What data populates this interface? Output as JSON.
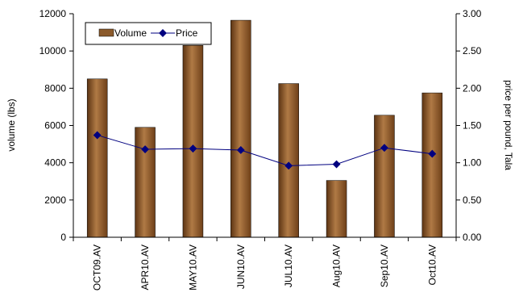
{
  "chart_data": {
    "type": "bar",
    "title": "",
    "categories": [
      "OCT09.AV",
      "APR10.AV",
      "MAY10.AV",
      "JUN10.AV",
      "JUL10.AV",
      "Aug10.AV",
      "Sep10.AV",
      "Oct10.AV"
    ],
    "series": [
      {
        "name": "Volume",
        "type": "bar",
        "axis": "left",
        "color": "#8b5a2b",
        "values": [
          8500,
          5900,
          10300,
          11650,
          8250,
          3050,
          6550,
          7750
        ]
      },
      {
        "name": "Price",
        "type": "line",
        "axis": "right",
        "color": "#000080",
        "values": [
          1.37,
          1.18,
          1.19,
          1.17,
          0.96,
          0.98,
          1.2,
          1.12
        ]
      }
    ],
    "ylabel": "volume (lbs)",
    "ylabel_right": "price per pound, Tala",
    "ylim": [
      0,
      12000
    ],
    "ylim_right": [
      0,
      3
    ],
    "yticks": [
      "0",
      "2000",
      "4000",
      "6000",
      "8000",
      "10000",
      "12000"
    ],
    "yticks_right": [
      "0.00",
      "0.50",
      "1.00",
      "1.50",
      "2.00",
      "2.50",
      "3.00"
    ],
    "legend_position": "top-left",
    "grid": false
  }
}
